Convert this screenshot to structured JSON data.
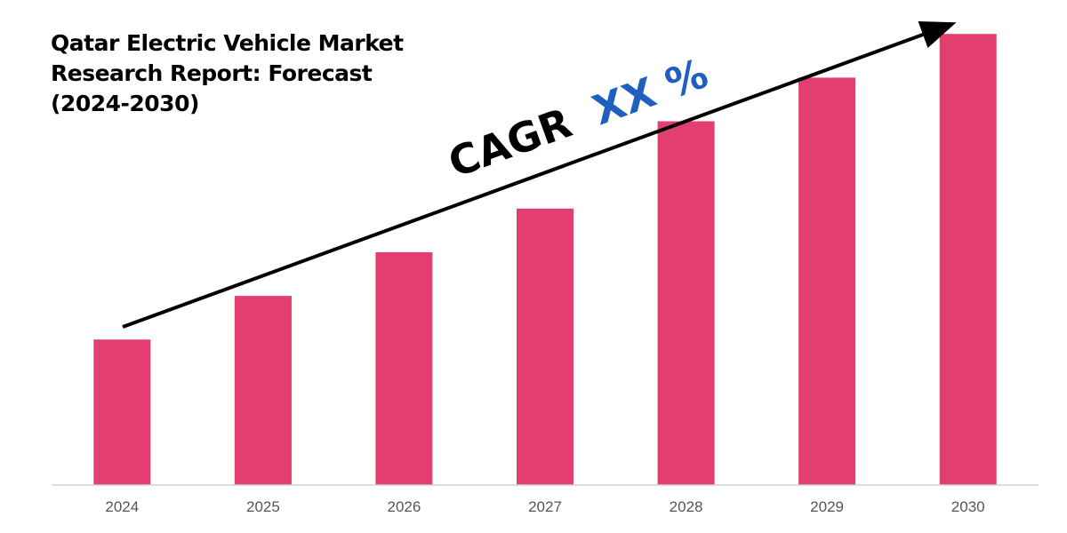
{
  "title_lines": [
    "Qatar Electric Vehicle Market",
    "Research Report: Forecast",
    "(2024-2030)"
  ],
  "cagr": {
    "prefix": "CAGR",
    "value": "XX %"
  },
  "colors": {
    "bar": "#e23e6f",
    "cagr_value": "#1f5fbf",
    "arrow": "#000000",
    "axis": "#d0d0d0"
  },
  "chart_data": {
    "type": "bar",
    "categories": [
      "2024",
      "2025",
      "2026",
      "2027",
      "2028",
      "2029",
      "2030"
    ],
    "values": [
      30,
      39,
      48,
      57,
      75,
      84,
      93
    ],
    "ylim": [
      0,
      100
    ],
    "grid": false,
    "legend": "none",
    "title": "Qatar Electric Vehicle Market Research Report: Forecast (2024-2030)",
    "xlabel": "",
    "ylabel": ""
  }
}
